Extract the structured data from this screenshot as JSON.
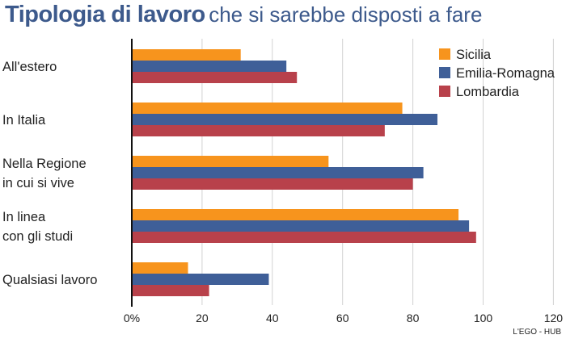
{
  "title": {
    "bold": "Tipologia di lavoro",
    "rest": "che si sarebbe disposti a fare"
  },
  "credit": "L'EGO - HUB",
  "chart_data": {
    "type": "bar",
    "orientation": "horizontal",
    "categories": [
      [
        "All'estero"
      ],
      [
        "In Italia"
      ],
      [
        "Nella Regione",
        "in cui si vive"
      ],
      [
        "In linea",
        "con gli studi"
      ],
      [
        "Qualsiasi lavoro"
      ]
    ],
    "series": [
      {
        "name": "Sicilia",
        "color": "#f7941d",
        "values": [
          31,
          77,
          56,
          93,
          16
        ]
      },
      {
        "name": "Emilia-Romagna",
        "color": "#3f5f98",
        "values": [
          44,
          87,
          83,
          96,
          39
        ]
      },
      {
        "name": "Lombardia",
        "color": "#b8414b",
        "values": [
          47,
          72,
          80,
          98,
          22
        ]
      }
    ],
    "xlim": [
      0,
      120
    ],
    "xticks": [
      {
        "value": 0,
        "label": "0%"
      },
      {
        "value": 20,
        "label": "20"
      },
      {
        "value": 40,
        "label": "40"
      },
      {
        "value": 60,
        "label": "60"
      },
      {
        "value": 80,
        "label": "80"
      },
      {
        "value": 100,
        "label": "100"
      },
      {
        "value": 120,
        "label": "120"
      }
    ],
    "grid": "vertical",
    "legend_position": "top-right"
  }
}
